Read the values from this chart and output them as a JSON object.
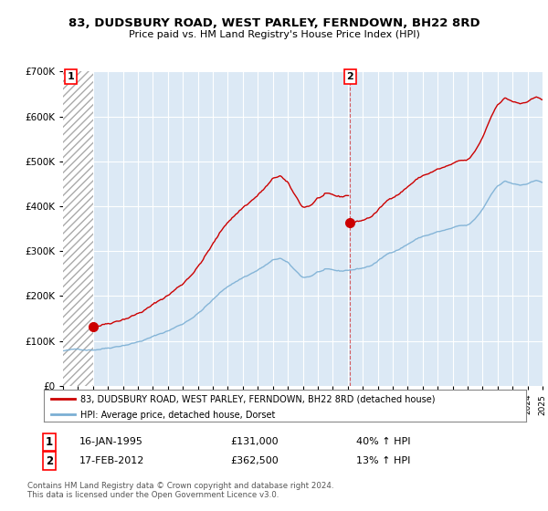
{
  "title": "83, DUDSBURY ROAD, WEST PARLEY, FERNDOWN, BH22 8RD",
  "subtitle": "Price paid vs. HM Land Registry's House Price Index (HPI)",
  "ylim": [
    0,
    700000
  ],
  "yticks": [
    0,
    100000,
    200000,
    300000,
    400000,
    500000,
    600000,
    700000
  ],
  "background_color": "#ffffff",
  "plot_bg_color": "#dce9f5",
  "grid_color": "#ffffff",
  "legend_label_red": "83, DUDSBURY ROAD, WEST PARLEY, FERNDOWN, BH22 8RD (detached house)",
  "legend_label_blue": "HPI: Average price, detached house, Dorset",
  "purchase1_year": 1995.04,
  "purchase1_price": 131000,
  "purchase2_year": 2012.12,
  "purchase2_price": 362500,
  "footer": "Contains HM Land Registry data © Crown copyright and database right 2024.\nThis data is licensed under the Open Government Licence v3.0.",
  "red_line_color": "#cc0000",
  "blue_line_color": "#7bafd4",
  "marker_color": "#cc0000",
  "vline_color": "#cc0000",
  "table_row1_date": "16-JAN-1995",
  "table_row1_price": "£131,000",
  "table_row1_pct": "40% ↑ HPI",
  "table_row2_date": "17-FEB-2012",
  "table_row2_price": "£362,500",
  "table_row2_pct": "13% ↑ HPI",
  "xmin": 1993,
  "xmax": 2025
}
